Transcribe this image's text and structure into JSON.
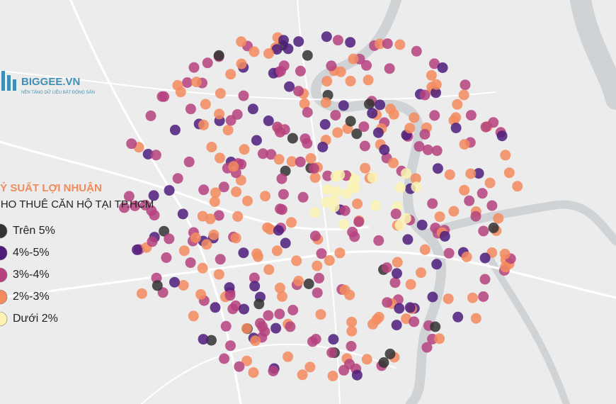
{
  "logo": {
    "name": "BIGGEE.VN",
    "tagline": "NỀN TẢNG DỮ LIỆU BẤT ĐỘNG SẢN"
  },
  "title": {
    "line1": "TỶ SUẤT LỢI NHUẬN",
    "line2": "CHO THUÊ CĂN HỘ TẠI TP.HCM"
  },
  "legend": [
    {
      "label": "Trên 5%",
      "color": "#333333"
    },
    {
      "label": "4%-5%",
      "color": "#4e1d7c"
    },
    {
      "label": "3%-4%",
      "color": "#b5427f"
    },
    {
      "label": "2%-3%",
      "color": "#f38b5f"
    },
    {
      "label": "Dưới 2%",
      "color": "#fbf3b2"
    }
  ]
}
